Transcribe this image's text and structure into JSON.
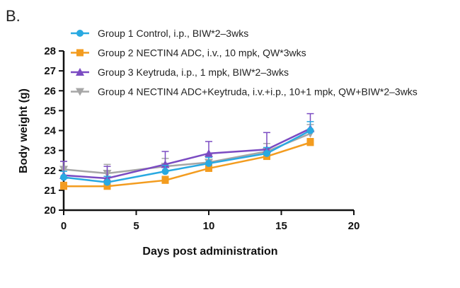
{
  "panel_label": "B.",
  "chart_data": {
    "type": "line",
    "title": "",
    "xlabel": "Days post administration",
    "ylabel": "Body weight (g)",
    "xlim": [
      0,
      20
    ],
    "ylim": [
      20,
      28
    ],
    "xticks": [
      0,
      5,
      10,
      15,
      20
    ],
    "yticks": [
      20,
      21,
      22,
      23,
      24,
      25,
      26,
      27,
      28
    ],
    "grid": false,
    "legend": "top",
    "x": [
      0,
      3,
      7,
      10,
      14,
      17
    ],
    "series": [
      {
        "name": "Group 1 Control, i.p., BIW*2–3wks",
        "color": "#29a9e1",
        "marker": "circle",
        "values": [
          21.65,
          21.4,
          21.95,
          22.35,
          22.85,
          24.0
        ],
        "errors": [
          0.3,
          0.3,
          0.3,
          0.3,
          0.3,
          0.45
        ]
      },
      {
        "name": "Group 2 NECTIN4 ADC, i.v., 10 mpk, QW*3wks",
        "color": "#f39c1f",
        "marker": "square",
        "values": [
          21.2,
          21.2,
          21.5,
          22.1,
          22.7,
          23.4
        ],
        "errors": [
          0.2,
          0.2,
          0.2,
          0.2,
          0.2,
          0.2
        ]
      },
      {
        "name": "Group 3 Keytruda, i.p., 1 mpk, BIW*2–3wks",
        "color": "#7b4bc2",
        "marker": "triangle-up",
        "values": [
          21.75,
          21.6,
          22.3,
          22.85,
          23.05,
          24.1
        ],
        "errors": [
          0.7,
          0.6,
          0.65,
          0.6,
          0.85,
          0.75
        ]
      },
      {
        "name": "Group 4 NECTIN4 ADC+Keytruda, i.v.+i.p., 10+1 mpk, QW+BIW*2–3wks",
        "color": "#a6a6a6",
        "marker": "triangle-down",
        "values": [
          22.05,
          21.85,
          22.2,
          22.4,
          22.95,
          23.85
        ],
        "errors": [
          0.4,
          0.45,
          0.4,
          0.4,
          0.4,
          0.45
        ]
      }
    ]
  }
}
